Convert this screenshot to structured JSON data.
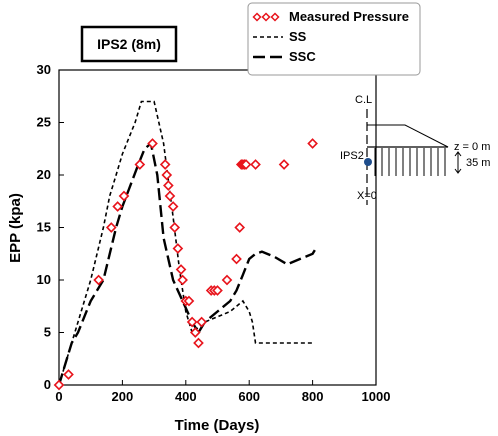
{
  "chart_data": {
    "type": "line",
    "title": "IPS2 (8m)",
    "xlabel": "Time (Days)",
    "ylabel": "EPP (kpa)",
    "xlim": [
      0,
      1000
    ],
    "ylim": [
      0,
      30
    ],
    "xticks": [
      0,
      200,
      400,
      600,
      800,
      1000
    ],
    "yticks": [
      0,
      5,
      10,
      15,
      20,
      25,
      30
    ],
    "grid": false,
    "legend": "top-right",
    "series": [
      {
        "name": "Measured Pressure",
        "kind": "scatter",
        "marker": "diamond",
        "color": "#e8141c",
        "x": [
          0,
          30,
          125,
          165,
          185,
          205,
          255,
          295,
          335,
          340,
          345,
          350,
          360,
          365,
          375,
          385,
          390,
          400,
          410,
          420,
          430,
          440,
          450,
          480,
          490,
          500,
          530,
          560,
          570,
          575,
          580,
          585,
          590,
          620,
          710,
          800
        ],
        "y": [
          0,
          1,
          10,
          15,
          17,
          18,
          21,
          23,
          21,
          20,
          19,
          18,
          17,
          15,
          13,
          11,
          10,
          8,
          8,
          6,
          5,
          4,
          6,
          9,
          9,
          9,
          10,
          12,
          15,
          21,
          21,
          21,
          21,
          21,
          21,
          23
        ]
      },
      {
        "name": "SS",
        "kind": "line",
        "dash": "short",
        "color": "#000000",
        "x": [
          0,
          20,
          60,
          100,
          140,
          160,
          180,
          200,
          240,
          260,
          300,
          330,
          360,
          380,
          400,
          420,
          440,
          460,
          500,
          540,
          580,
          600,
          610,
          620,
          800
        ],
        "y": [
          0,
          2,
          6,
          10,
          15,
          18,
          20,
          22,
          25,
          27,
          27,
          23,
          16,
          11,
          7,
          5,
          5.5,
          6,
          6.5,
          7,
          8,
          7,
          6,
          4,
          4
        ]
      },
      {
        "name": "SSC",
        "kind": "line",
        "dash": "long",
        "color": "#000000",
        "x": [
          0,
          20,
          40,
          60,
          100,
          140,
          180,
          200,
          250,
          270,
          290,
          310,
          330,
          360,
          390,
          420,
          440,
          460,
          500,
          540,
          560,
          580,
          600,
          620,
          640,
          680,
          720,
          760,
          800,
          810
        ],
        "y": [
          0,
          2,
          4,
          5,
          8,
          10,
          15,
          17,
          21,
          22.5,
          23,
          20,
          14,
          10,
          8,
          6,
          5,
          6,
          7,
          8,
          9,
          10.5,
          12,
          12.5,
          12.7,
          12.2,
          11.5,
          12,
          12.5,
          13
        ]
      }
    ]
  },
  "sketch": {
    "cl_label": "C.L",
    "sensor_label": "IPS2",
    "x0_label": "X=0",
    "z_label": "z = 0 m",
    "depth_label": "35 m",
    "sensor_color": "#1f4e8c"
  }
}
